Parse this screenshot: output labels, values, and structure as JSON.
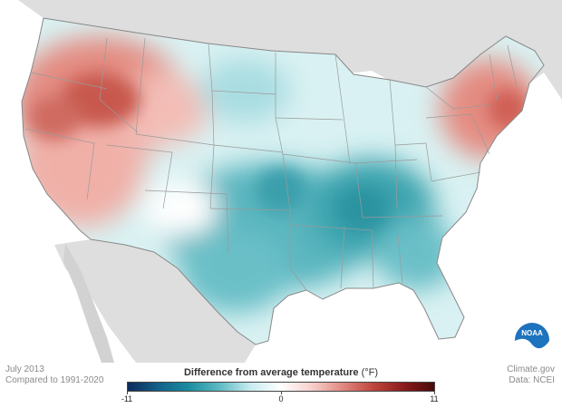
{
  "caption": {
    "period": "July 2013",
    "baseline": "Compared to 1991-2020",
    "credit": "Climate.gov",
    "source": "Data: NCEI"
  },
  "legend": {
    "title": "Difference from average temperature",
    "unit": "(°F)",
    "min_label": "-11",
    "mid_label": "0",
    "max_label": "11",
    "colors": [
      "#0c2a5a",
      "#14618a",
      "#1a8ea0",
      "#5fbac4",
      "#c8ecef",
      "#ffffff",
      "#f7d0cc",
      "#e08a82",
      "#c0463e",
      "#8a1c1c",
      "#4a0a0a"
    ]
  },
  "logo": {
    "text": "NOAA",
    "icon": "noaa-logo"
  },
  "map_colors": {
    "ocean": "#ffffff",
    "neighbor_land": "#dedede",
    "state_line": "#9a9a9a",
    "warm": "#e7897f",
    "hot": "#c85a50",
    "cool": "#7fcad0",
    "cold": "#2e9aa6"
  }
}
